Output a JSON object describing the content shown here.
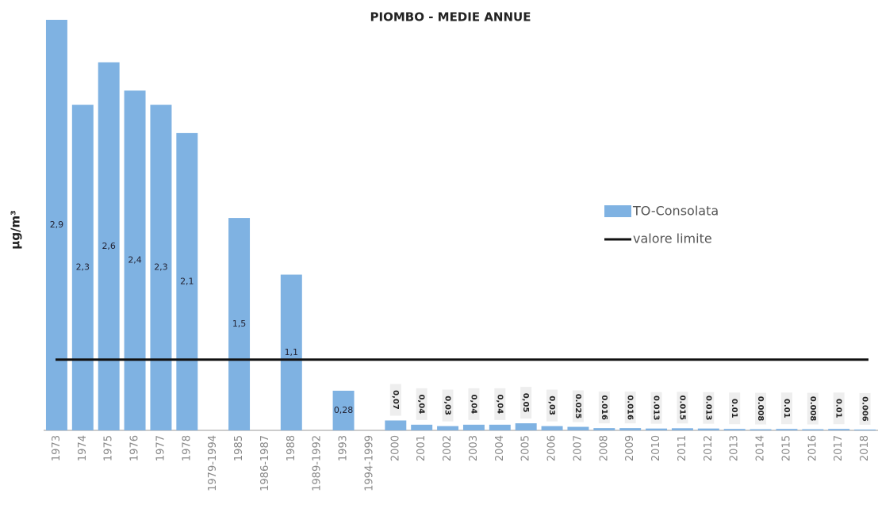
{
  "chart_data": {
    "type": "bar",
    "title": "PIOMBO - MEDIE ANNUE",
    "y_label": "μg/m³",
    "categories": [
      "1973",
      "1974",
      "1975",
      "1976",
      "1977",
      "1978",
      "1979-1994",
      "1985",
      "1986-1987",
      "1988",
      "1989-1992",
      "1993",
      "1994-1999",
      "2000",
      "2001",
      "2002",
      "2003",
      "2004",
      "2005",
      "2006",
      "2007",
      "2008",
      "2009",
      "2010",
      "2011",
      "2012",
      "2013",
      "2014",
      "2015",
      "2016",
      "2017",
      "2018"
    ],
    "series": [
      {
        "name": "TO-Consolata",
        "color": "#7fb2e2",
        "values": [
          2.9,
          2.3,
          2.6,
          2.4,
          2.3,
          2.1,
          null,
          1.5,
          null,
          1.1,
          null,
          0.28,
          null,
          0.07,
          0.04,
          0.03,
          0.04,
          0.04,
          0.05,
          0.03,
          0.025,
          0.016,
          0.016,
          0.013,
          0.015,
          0.013,
          0.01,
          0.008,
          0.01,
          0.008,
          0.01,
          0.006
        ],
        "value_labels": [
          "2,9",
          "2,3",
          "2,6",
          "2,4",
          "2,3",
          "2,1",
          null,
          "1,5",
          null,
          "1,1",
          null,
          "0,28",
          null,
          "0,07",
          "0,04",
          "0,03",
          "0,04",
          "0,04",
          "0,05",
          "0,03",
          "0.025",
          "0.016",
          "0.016",
          "0.013",
          "0.015",
          "0.013",
          "0.01",
          "0.008",
          "0.01",
          "0.008",
          "0.01",
          "0.006"
        ]
      }
    ],
    "limit": {
      "name": "valore limite",
      "value": 0.5,
      "color": "#111111"
    },
    "ylim": [
      0,
      2.9
    ],
    "legend": "right"
  }
}
